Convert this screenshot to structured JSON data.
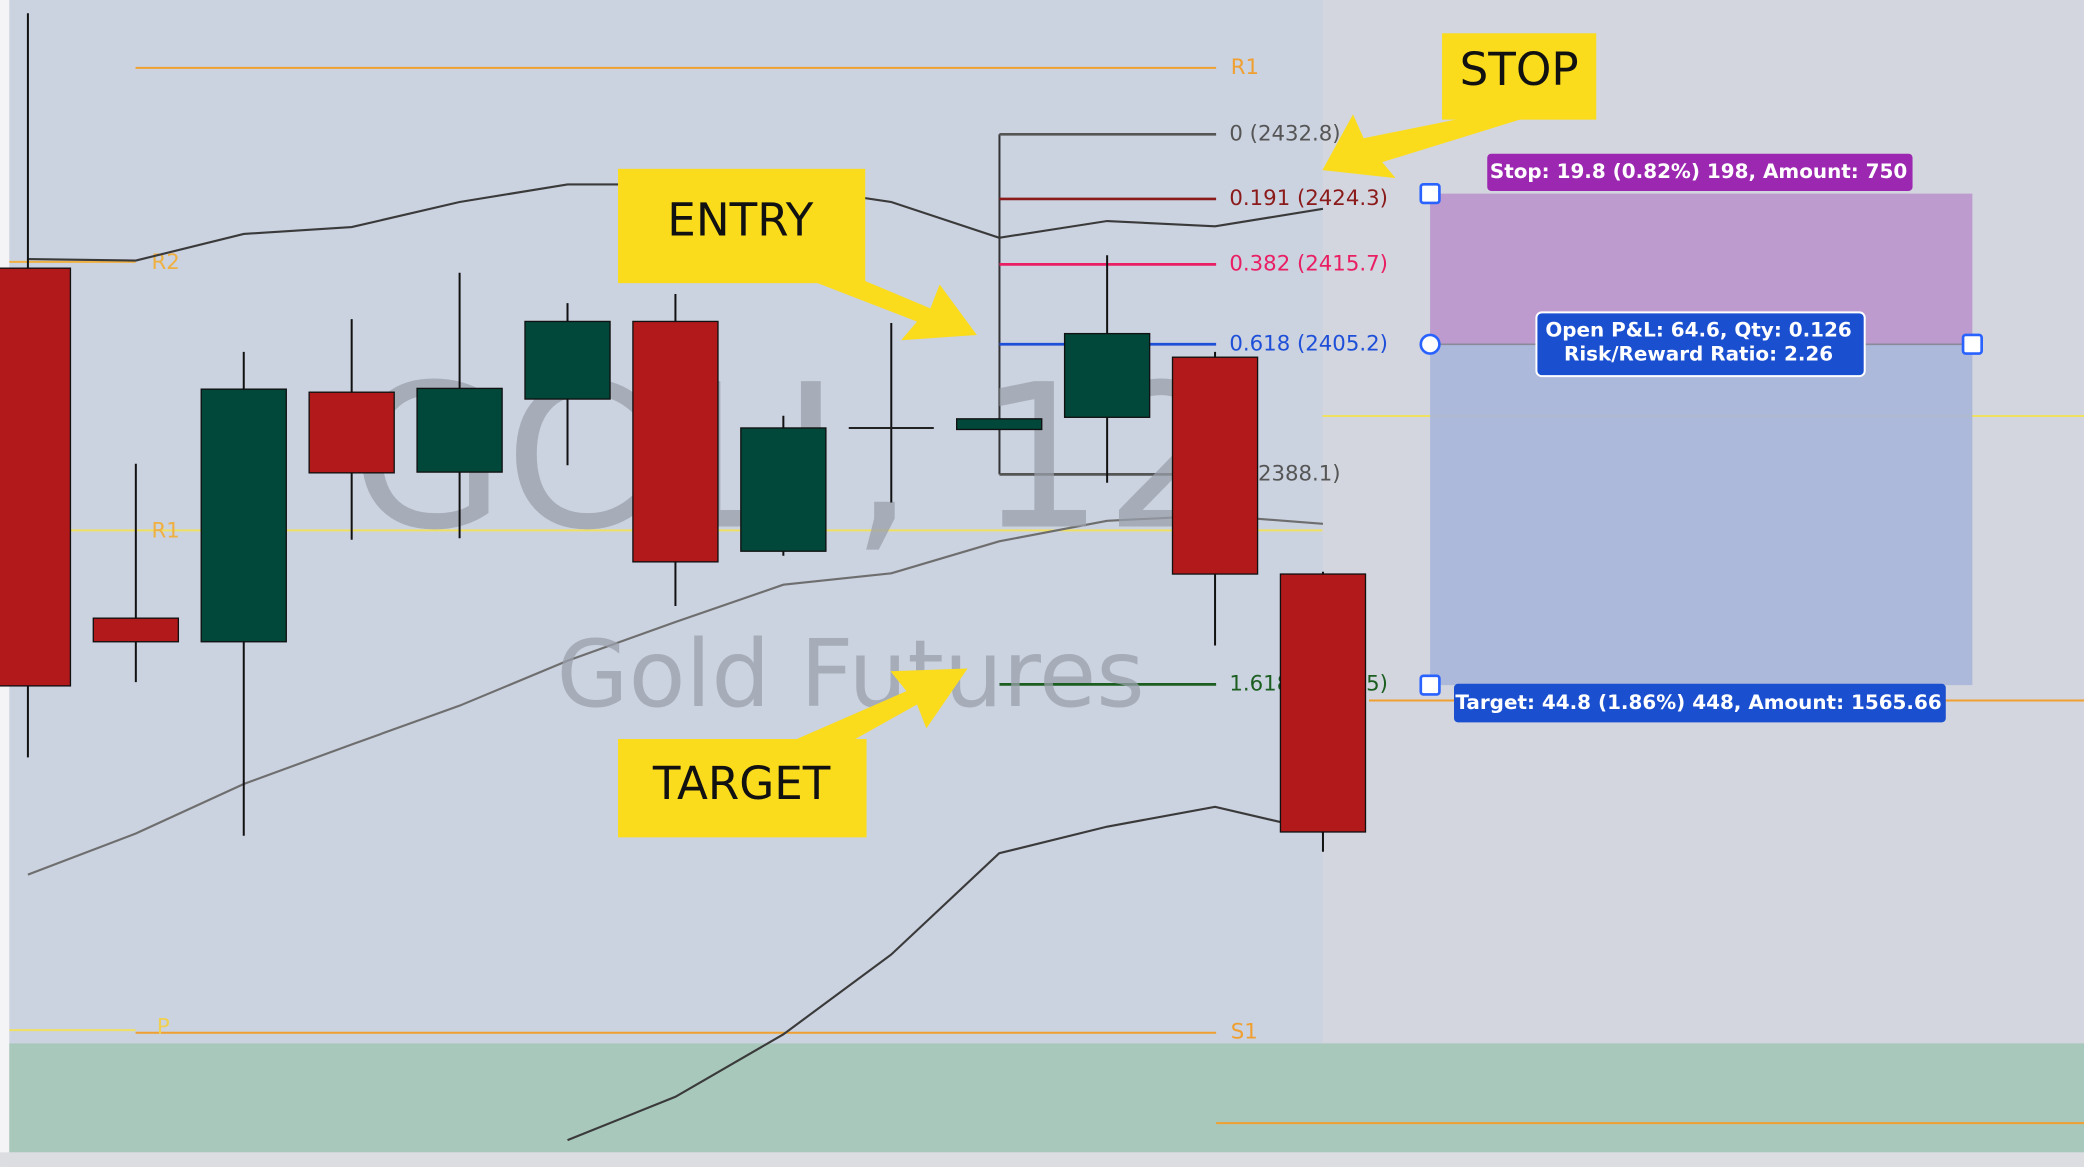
{
  "watermark": {
    "symbol": "GC1!, 12",
    "name": "Gold Futures"
  },
  "pivot_labels": [
    "R1",
    "R2",
    "R1",
    "P",
    "S1"
  ],
  "annotations": [
    "STOP",
    "ENTRY",
    "TARGET"
  ],
  "chart_data": {
    "type": "candlestick",
    "up_color": "#01473a",
    "down_color": "#b2191b",
    "open": [
      2415.2,
      2369.2,
      2366.1,
      2398.9,
      2388.4,
      2398.0,
      2408.2,
      2378.0,
      2394.2,
      2394.0,
      2395.6,
      2403.5,
      2375.0
    ],
    "high": [
      2448.7,
      2389.5,
      2404.2,
      2408.5,
      2414.6,
      2410.6,
      2411.8,
      2395.8,
      2408.0,
      2395.4,
      2416.9,
      2404.2,
      2375.3
    ],
    "low": [
      2350.9,
      2360.8,
      2340.6,
      2379.5,
      2379.7,
      2389.3,
      2370.8,
      2377.4,
      2384.4,
      2394.0,
      2387.0,
      2365.6,
      2338.5
    ],
    "close": [
      2360.3,
      2366.1,
      2399.3,
      2388.3,
      2399.4,
      2408.2,
      2376.6,
      2394.2,
      2394.2,
      2395.4,
      2406.6,
      2375.0,
      2341.1
    ],
    "upper_band": [
      2416.4,
      2416.2,
      2419.7,
      2420.6,
      2423.9,
      2426.2,
      2426.2,
      2426.0,
      2423.9,
      2419.2,
      2421.4,
      2420.7,
      2423.0
    ],
    "middle_band": [
      2335.5,
      2340.9,
      2347.4,
      2352.6,
      2357.7,
      2363.6,
      2368.7,
      2373.6,
      2375.1,
      2379.3,
      2382.0,
      2382.7,
      2381.6
    ],
    "lower_band": [
      null,
      null,
      null,
      null,
      null,
      2300.6,
      2306.3,
      2314.5,
      2325.0,
      2338.3,
      2341.8,
      2344.4,
      2341.1
    ],
    "band_color": "#3a3a3a",
    "middle_color": "#6e6e6e",
    "fib_levels": [
      {
        "price": 2432.8,
        "label": "0 (2432.8)",
        "color": "#555555"
      },
      {
        "price": 2424.3,
        "label": "0.191 (2424.3)",
        "color": "#8b1a1a"
      },
      {
        "price": 2415.7,
        "label": "0.382 (2415.7)",
        "color": "#e91e63"
      },
      {
        "price": 2405.2,
        "label": "0.618 (2405.2)",
        "color": "#1e4fd8"
      },
      {
        "price": 2388.1,
        "label": "1 (2388.1)",
        "color": "#555555"
      },
      {
        "price": 2360.5,
        "label": "1.618 (2360.5)",
        "color": "#1b5e20"
      }
    ],
    "position": {
      "entry": 2405.2,
      "stop": 2425.0,
      "target": 2360.4,
      "stop_label": "Stop: 19.8 (0.82%) 198, Amount: 750",
      "pnl_label": "Open P&L: 64.6, Qty: 0.126",
      "rr_label": "Risk/Reward Ratio: 2.26",
      "target_label": "Target: 44.8 (1.86%) 448, Amount: 1565.66"
    }
  }
}
